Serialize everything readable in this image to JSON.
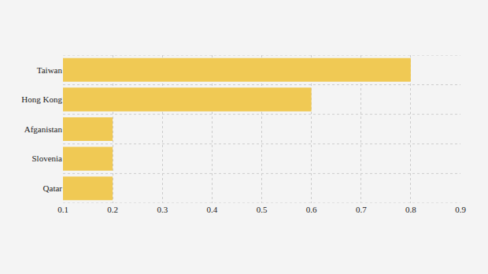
{
  "chart_data": {
    "type": "bar",
    "orientation": "horizontal",
    "categories": [
      "Taiwan",
      "Hong Kong",
      "Afganistan",
      "Slovenia",
      "Qatar"
    ],
    "values": [
      0.8,
      0.6,
      0.2,
      0.2,
      0.2
    ],
    "color": "#f0c954",
    "xlim": [
      0.1,
      0.9
    ],
    "xticks": [
      0.1,
      0.2,
      0.3,
      0.4,
      0.5,
      0.6,
      0.7,
      0.8,
      0.9
    ],
    "grid": true
  }
}
